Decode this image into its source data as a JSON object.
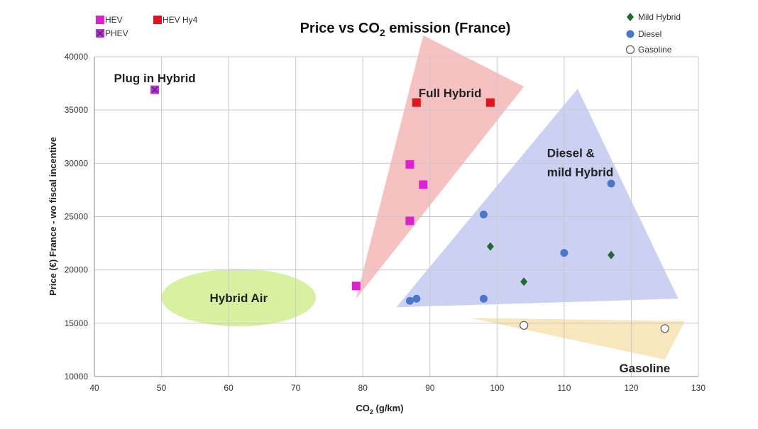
{
  "chart_data": {
    "type": "scatter",
    "title_main": "Price vs CO",
    "title_sub": "2",
    "title_tail": " emission (France)",
    "xlabel_main": "CO",
    "xlabel_sub": "2",
    "xlabel_tail": " (g/km)",
    "ylabel": "Price (€) France - wo fiscal incentive",
    "xlim": [
      40,
      130
    ],
    "ylim": [
      10000,
      40000
    ],
    "x_ticks": [
      "40",
      "50",
      "60",
      "70",
      "80",
      "90",
      "100",
      "110",
      "120",
      "130"
    ],
    "y_ticks": [
      "10000",
      "15000",
      "20000",
      "25000",
      "30000",
      "35000",
      "40000"
    ],
    "grid": true,
    "series": [
      {
        "name": "HEV",
        "marker": "square",
        "color": "#e020d0",
        "points": [
          [
            79,
            18500
          ],
          [
            87,
            24600
          ],
          [
            87,
            29900
          ],
          [
            89,
            28000
          ]
        ]
      },
      {
        "name": "HEV Hy4",
        "marker": "square",
        "color": "#e0141e",
        "points": [
          [
            88,
            35700
          ],
          [
            99,
            35700
          ]
        ]
      },
      {
        "name": "PHEV",
        "marker": "square-x",
        "color": "#b03ad0",
        "points": [
          [
            49,
            36900
          ]
        ]
      },
      {
        "name": "Mild Hybrid",
        "marker": "diamond",
        "color": "#1e6b2e",
        "points": [
          [
            99,
            22200
          ],
          [
            104,
            18900
          ],
          [
            117,
            21400
          ]
        ]
      },
      {
        "name": "Diesel",
        "marker": "circle",
        "color": "#4a78c8",
        "points": [
          [
            87,
            17100
          ],
          [
            88,
            17300
          ],
          [
            98,
            17300
          ],
          [
            98,
            25200
          ],
          [
            110,
            21600
          ],
          [
            117,
            28100
          ]
        ]
      },
      {
        "name": "Gasoline",
        "marker": "open-circle",
        "color": "#666666",
        "points": [
          [
            104,
            14800
          ],
          [
            125,
            14500
          ]
        ]
      }
    ],
    "regions": [
      {
        "label": "Plug in Hybrid",
        "shape": "none",
        "color": "none",
        "label_at": [
          49,
          38000
        ]
      },
      {
        "label": "Full Hybrid",
        "shape": "triangle",
        "color": "#f0a0a0",
        "vertices": [
          [
            79,
            17300
          ],
          [
            89,
            42000
          ],
          [
            104,
            37200
          ]
        ],
        "label_at": [
          93,
          36600
        ]
      },
      {
        "label": "Diesel &",
        "label2": "mild Hybrid",
        "shape": "triangle",
        "color": "#b0b8ec",
        "vertices": [
          [
            85,
            16500
          ],
          [
            112,
            37000
          ],
          [
            127,
            17300
          ]
        ],
        "label_at": [
          114,
          31000
        ]
      },
      {
        "label": "Gasoline",
        "shape": "triangle",
        "color": "#f5d898",
        "vertices": [
          [
            96,
            15500
          ],
          [
            128,
            15200
          ],
          [
            125,
            11600
          ]
        ],
        "label_at": [
          122,
          10800
        ]
      },
      {
        "label": "Hybrid Air",
        "shape": "ellipse",
        "color": "#d8f0a0",
        "center": [
          61.5,
          17400
        ],
        "radii": [
          11.5,
          2700
        ],
        "label_at": [
          61.5,
          17400
        ]
      }
    ],
    "legend": {
      "placement": "top-left and top-right",
      "left_items": [
        "HEV",
        "HEV Hy4",
        "PHEV"
      ],
      "right_items": [
        "Mild Hybrid",
        "Diesel",
        "Gasoline"
      ]
    }
  }
}
